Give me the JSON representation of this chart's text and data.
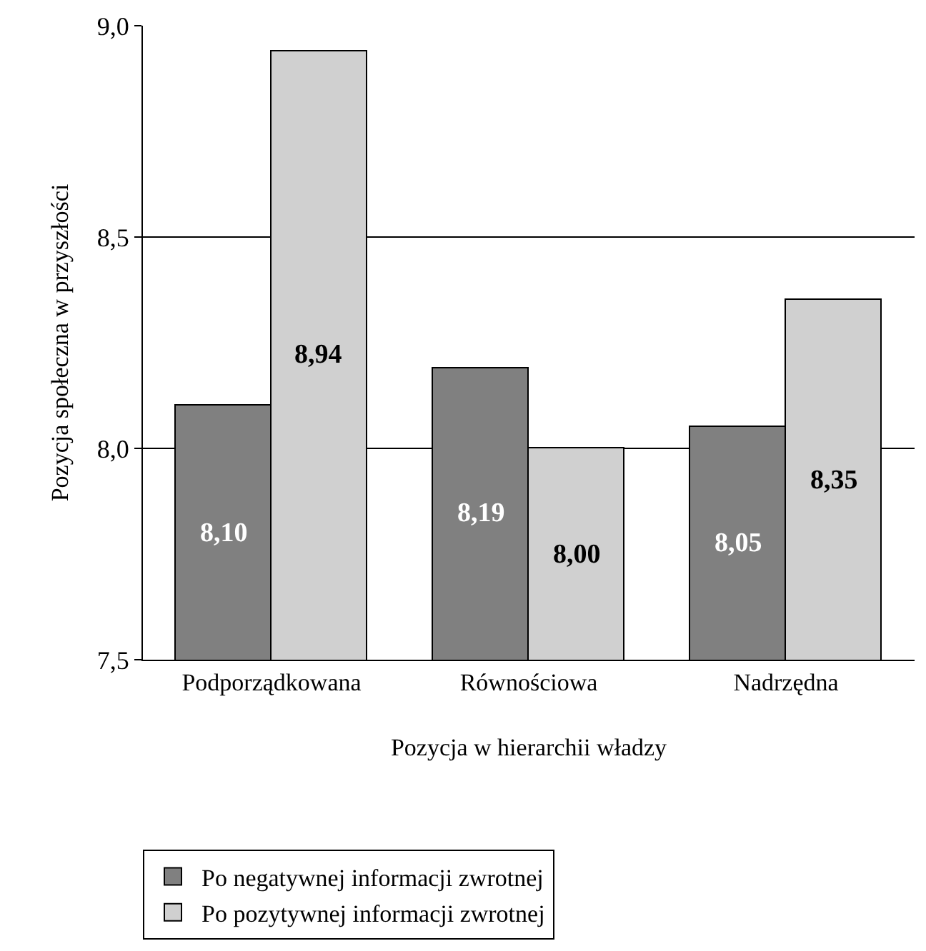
{
  "chart_data": {
    "type": "bar",
    "xlabel": "Pozycja w hierarchii władzy",
    "ylabel": "Pozycja społeczna w przyszłości",
    "categories": [
      "Podporządkowana",
      "Równościowa",
      "Nadrzędna"
    ],
    "series": [
      {
        "name": "Po negatywnej informacji zwrotnej",
        "color": "#808080",
        "values": [
          8.1,
          8.19,
          8.05
        ],
        "value_labels": [
          "8,10",
          "8,19",
          "8,05"
        ]
      },
      {
        "name": "Po pozytywnej informacji zwrotnej",
        "color": "#d0d0d0",
        "values": [
          8.94,
          8.0,
          8.35
        ],
        "value_labels": [
          "8,94",
          "8,00",
          "8,35"
        ]
      }
    ],
    "ylim": [
      7.5,
      9.0
    ],
    "yticks": [
      {
        "value": 7.5,
        "label": "7,5"
      },
      {
        "value": 8.0,
        "label": "8,0"
      },
      {
        "value": 8.5,
        "label": "8,5"
      },
      {
        "value": 9.0,
        "label": "9,0"
      }
    ],
    "grid": "y",
    "legend": "bottom"
  }
}
